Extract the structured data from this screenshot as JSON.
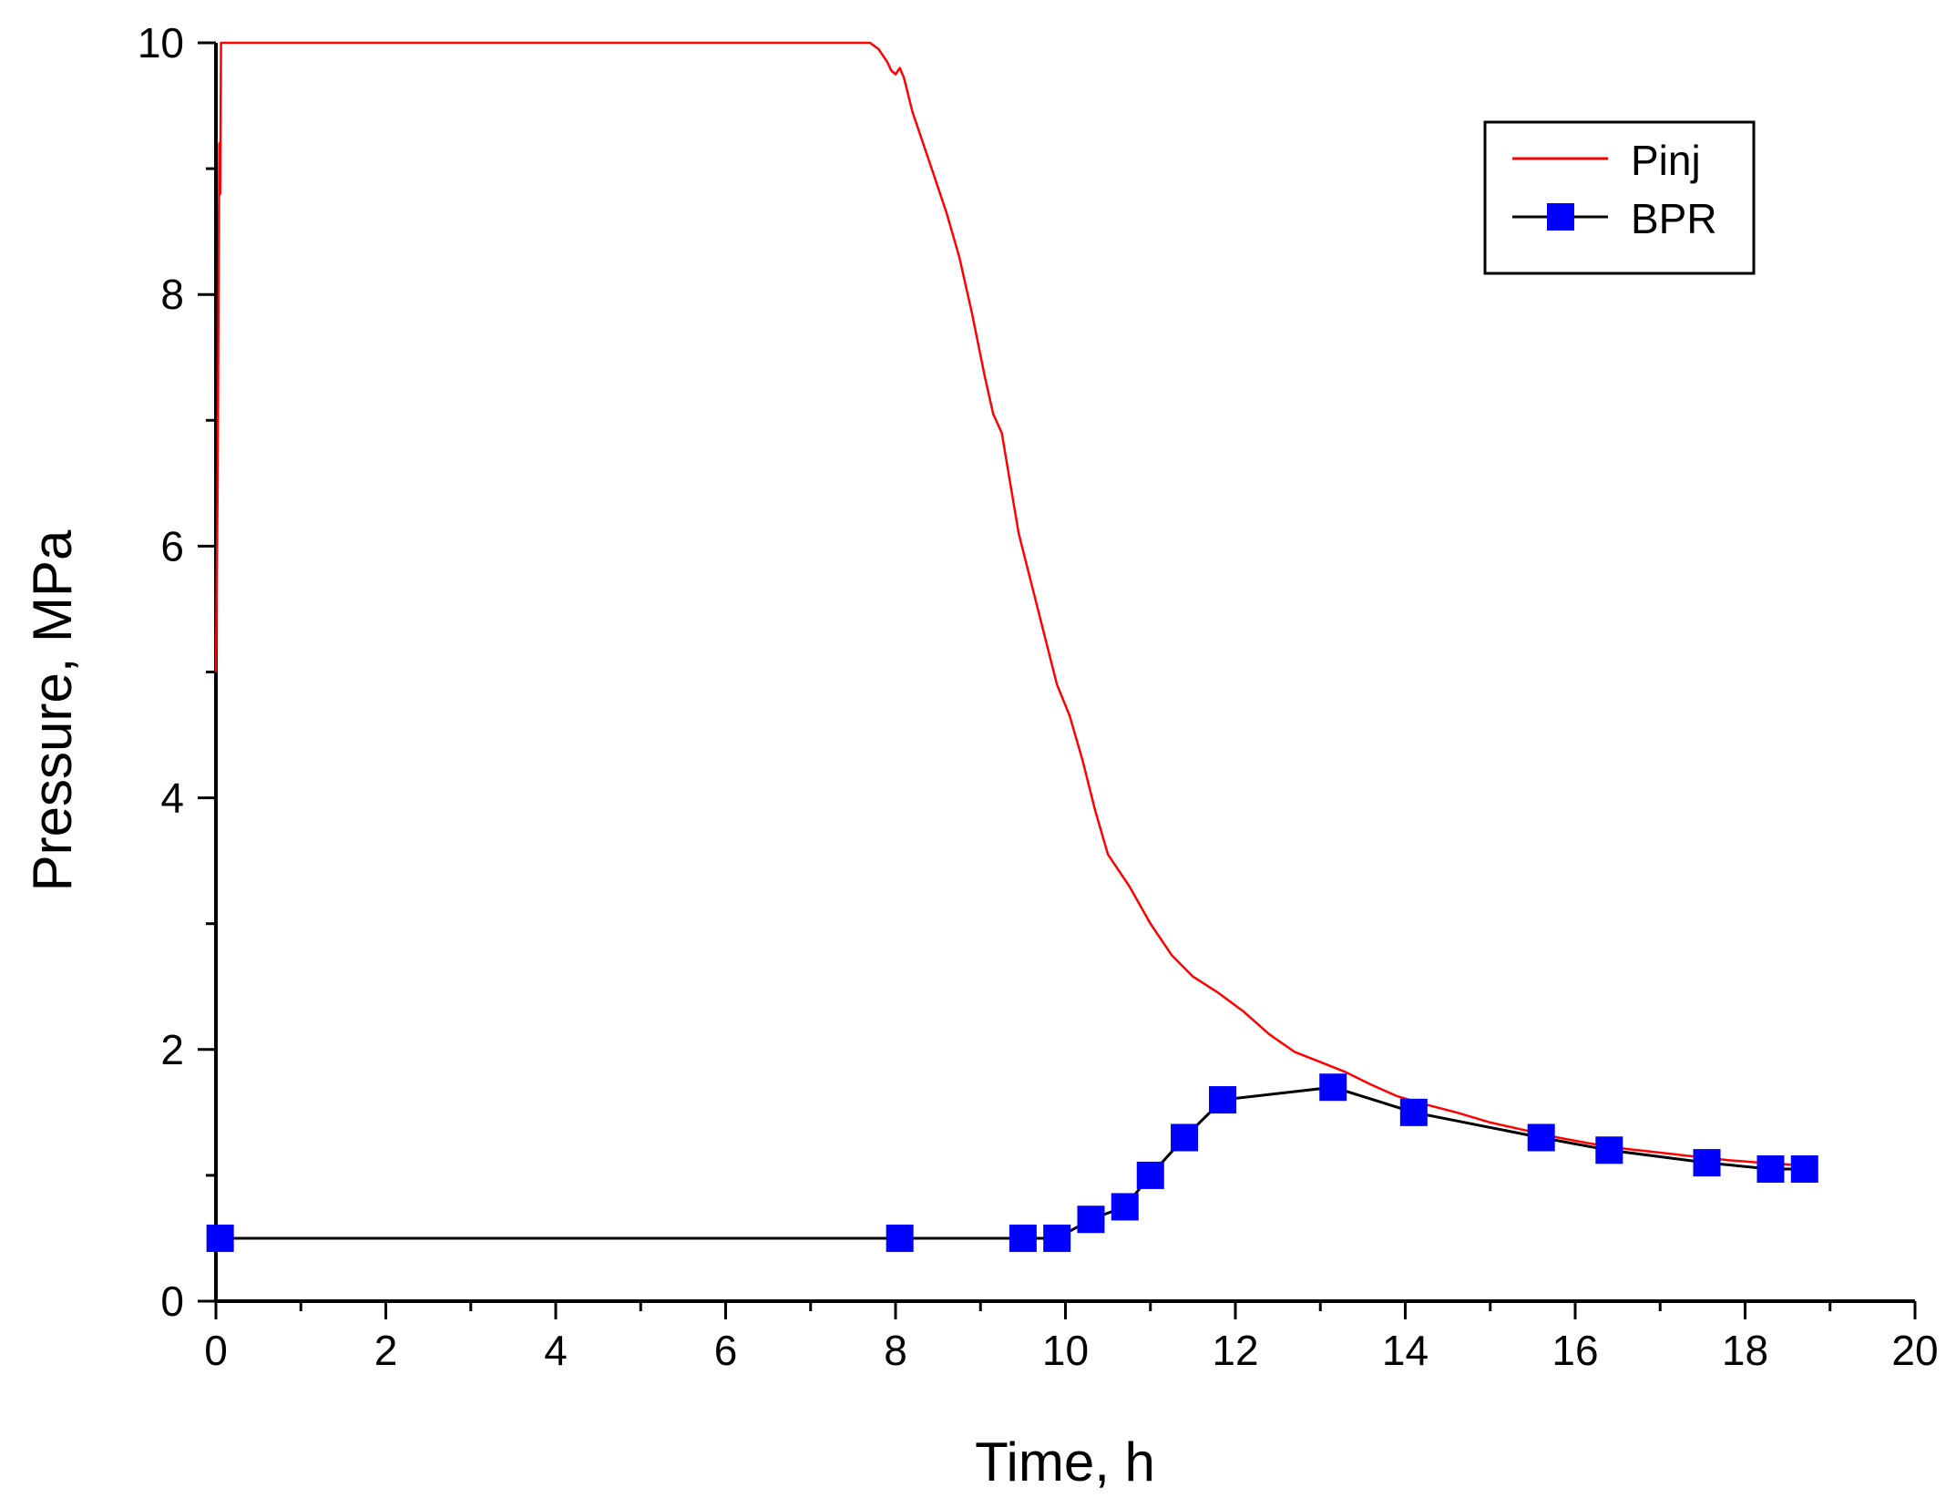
{
  "chart_data": {
    "type": "line",
    "title": "",
    "xlabel": "Time, h",
    "ylabel": "Pressure, MPa",
    "xlim": [
      0,
      20
    ],
    "ylim": [
      0,
      10
    ],
    "x_ticks": [
      {
        "value": 0,
        "label": "0"
      },
      {
        "value": 2,
        "label": "2"
      },
      {
        "value": 4,
        "label": "4"
      },
      {
        "value": 6,
        "label": "6"
      },
      {
        "value": 8,
        "label": "8"
      },
      {
        "value": 10,
        "label": "10"
      },
      {
        "value": 12,
        "label": "12"
      },
      {
        "value": 14,
        "label": "14"
      },
      {
        "value": 16,
        "label": "16"
      },
      {
        "value": 18,
        "label": "18"
      },
      {
        "value": 20,
        "label": "20"
      }
    ],
    "y_ticks": [
      {
        "value": 0,
        "label": "0"
      },
      {
        "value": 2,
        "label": "2"
      },
      {
        "value": 4,
        "label": "4"
      },
      {
        "value": 6,
        "label": "6"
      },
      {
        "value": 8,
        "label": "8"
      },
      {
        "value": 10,
        "label": "10"
      }
    ],
    "grid": false,
    "legend_position": "top-right",
    "series": [
      {
        "name": "Pinj",
        "color": "#ff0000",
        "marker": "none",
        "points": [
          [
            0.0,
            5.0
          ],
          [
            0.02,
            6.5
          ],
          [
            0.04,
            9.2
          ],
          [
            0.05,
            8.8
          ],
          [
            0.06,
            10.0
          ],
          [
            7.7,
            10.0
          ],
          [
            7.8,
            9.95
          ],
          [
            7.9,
            9.85
          ],
          [
            7.95,
            9.78
          ],
          [
            8.0,
            9.75
          ],
          [
            8.05,
            9.8
          ],
          [
            8.1,
            9.72
          ],
          [
            8.2,
            9.45
          ],
          [
            8.3,
            9.25
          ],
          [
            8.45,
            8.95
          ],
          [
            8.6,
            8.65
          ],
          [
            8.75,
            8.3
          ],
          [
            8.9,
            7.85
          ],
          [
            9.05,
            7.35
          ],
          [
            9.15,
            7.05
          ],
          [
            9.25,
            6.9
          ],
          [
            9.35,
            6.5
          ],
          [
            9.45,
            6.1
          ],
          [
            9.6,
            5.7
          ],
          [
            9.75,
            5.3
          ],
          [
            9.9,
            4.9
          ],
          [
            10.05,
            4.65
          ],
          [
            10.2,
            4.3
          ],
          [
            10.35,
            3.9
          ],
          [
            10.5,
            3.55
          ],
          [
            10.75,
            3.3
          ],
          [
            11.0,
            3.0
          ],
          [
            11.25,
            2.75
          ],
          [
            11.5,
            2.58
          ],
          [
            11.8,
            2.45
          ],
          [
            12.1,
            2.3
          ],
          [
            12.4,
            2.12
          ],
          [
            12.7,
            1.98
          ],
          [
            13.0,
            1.9
          ],
          [
            13.3,
            1.82
          ],
          [
            13.6,
            1.72
          ],
          [
            13.9,
            1.63
          ],
          [
            14.2,
            1.57
          ],
          [
            14.6,
            1.5
          ],
          [
            15.0,
            1.42
          ],
          [
            15.4,
            1.36
          ],
          [
            15.8,
            1.3
          ],
          [
            16.2,
            1.25
          ],
          [
            16.6,
            1.21
          ],
          [
            17.0,
            1.18
          ],
          [
            17.4,
            1.15
          ],
          [
            17.8,
            1.12
          ],
          [
            18.2,
            1.1
          ],
          [
            18.65,
            1.08
          ]
        ]
      },
      {
        "name": "BPR",
        "color": "#0000ff",
        "line_color": "#000000",
        "marker": "square",
        "points": [
          [
            0.05,
            0.5
          ],
          [
            8.05,
            0.5
          ],
          [
            9.5,
            0.5
          ],
          [
            9.9,
            0.5
          ],
          [
            10.3,
            0.65
          ],
          [
            10.7,
            0.75
          ],
          [
            11.0,
            1.0
          ],
          [
            11.4,
            1.3
          ],
          [
            11.85,
            1.6
          ],
          [
            13.15,
            1.7
          ],
          [
            14.1,
            1.5
          ],
          [
            15.6,
            1.3
          ],
          [
            16.4,
            1.2
          ],
          [
            17.55,
            1.1
          ],
          [
            18.3,
            1.05
          ],
          [
            18.7,
            1.05
          ]
        ]
      }
    ]
  }
}
